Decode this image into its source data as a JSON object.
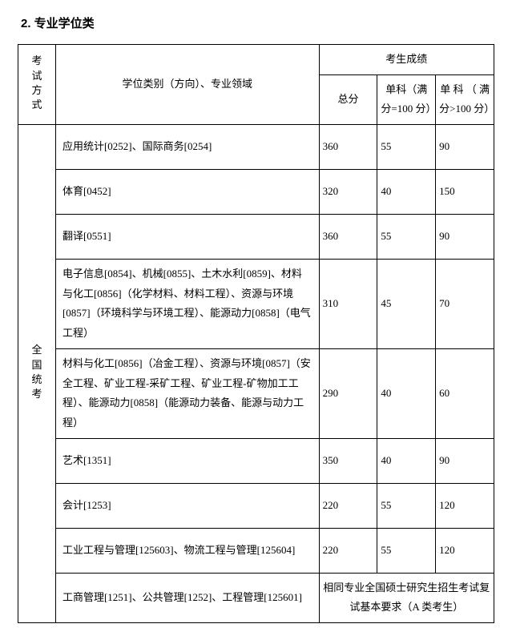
{
  "title": "2. 专业学位类",
  "headers": {
    "exam_method": "考试方式",
    "category": "学位类别（方向）、专业领域",
    "score_group": "考生成绩",
    "total": "总分",
    "subj_eq100": "单科（满分=100 分）",
    "subj_gt100": "单 科 （ 满分>100 分）"
  },
  "exam_label": "全国统考",
  "rows": [
    {
      "cat": "应用统计[0252]、国际商务[0254]",
      "total": "360",
      "s1": "55",
      "s2": "90"
    },
    {
      "cat": "体育[0452]",
      "total": "320",
      "s1": "40",
      "s2": "150"
    },
    {
      "cat": "翻译[0551]",
      "total": "360",
      "s1": "55",
      "s2": "90"
    },
    {
      "cat": "电子信息[0854]、机械[0855]、土木水利[0859]、材料与化工[0856]（化学材料、材料工程）、资源与环境[0857]（环境科学与环境工程）、能源动力[0858]（电气工程）",
      "total": "310",
      "s1": "45",
      "s2": "70"
    },
    {
      "cat": "材料与化工[0856]（冶金工程）、资源与环境[0857]（安全工程、矿业工程-采矿工程、矿业工程-矿物加工工程）、能源动力[0858]（能源动力装备、能源与动力工程）",
      "total": "290",
      "s1": "40",
      "s2": "60"
    },
    {
      "cat": "艺术[1351]",
      "total": "350",
      "s1": "40",
      "s2": "90"
    },
    {
      "cat": "会计[1253]",
      "total": "220",
      "s1": "55",
      "s2": "120"
    },
    {
      "cat": "工业工程与管理[125603]、物流工程与管理[125604]",
      "total": "220",
      "s1": "55",
      "s2": "120"
    }
  ],
  "last_row": {
    "cat": "工商管理[1251]、公共管理[1252]、工程管理[125601]",
    "note": "相同专业全国硕士研究生招生考试复试基本要求（A 类考生）"
  }
}
